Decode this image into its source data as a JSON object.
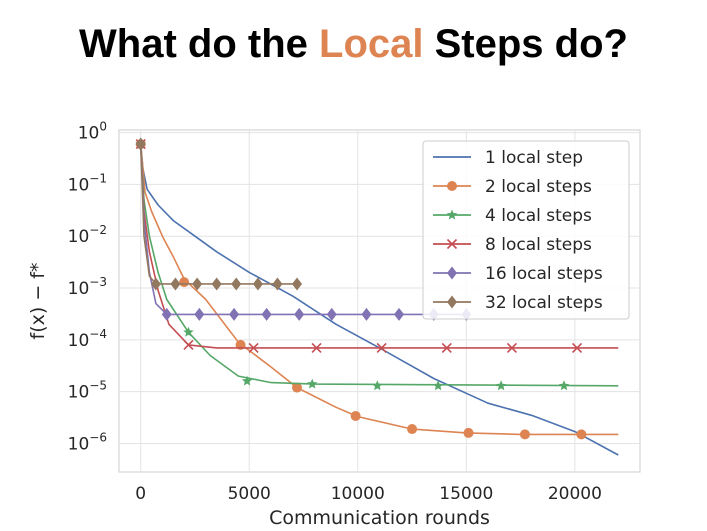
{
  "slide": {
    "title_before": "What do the ",
    "title_accent": "Local",
    "title_after": " Steps do?",
    "accent_color": "#dd8452"
  },
  "chart_data": {
    "type": "line",
    "xlabel": "Communication rounds",
    "ylabel": "f(x) − f*",
    "xlim": [
      -1000,
      23000
    ],
    "ylim_log10": [
      -6.55,
      0.05
    ],
    "yscale": "log",
    "grid": true,
    "legend_position": "top-right",
    "x_ticks": [
      {
        "value": 0,
        "label": "0"
      },
      {
        "value": 5000,
        "label": "5000"
      },
      {
        "value": 10000,
        "label": "10000"
      },
      {
        "value": 15000,
        "label": "15000"
      },
      {
        "value": 20000,
        "label": "20000"
      }
    ],
    "y_ticks": [
      {
        "exp": 0,
        "base": "10",
        "power": "0"
      },
      {
        "exp": -1,
        "base": "10",
        "power": "−1"
      },
      {
        "exp": -2,
        "base": "10",
        "power": "−2"
      },
      {
        "exp": -3,
        "base": "10",
        "power": "−3"
      },
      {
        "exp": -4,
        "base": "10",
        "power": "−4"
      },
      {
        "exp": -5,
        "base": "10",
        "power": "−5"
      },
      {
        "exp": -6,
        "base": "10",
        "power": "−6"
      }
    ],
    "series": [
      {
        "name": "1 local step",
        "color": "#4c72b0",
        "marker": "none",
        "points": [
          [
            0,
            0.6
          ],
          [
            100,
            0.2
          ],
          [
            300,
            0.08
          ],
          [
            800,
            0.04
          ],
          [
            1500,
            0.02
          ],
          [
            2500,
            0.01
          ],
          [
            3500,
            0.005
          ],
          [
            5000,
            0.002
          ],
          [
            7000,
            0.0007
          ],
          [
            9000,
            0.0002
          ],
          [
            11000,
            7e-05
          ],
          [
            13500,
            1.8e-05
          ],
          [
            16000,
            6e-06
          ],
          [
            18000,
            3.5e-06
          ],
          [
            20000,
            1.7e-06
          ],
          [
            22000,
            6e-07
          ]
        ],
        "markers": []
      },
      {
        "name": "2 local steps",
        "color": "#dd8452",
        "marker": "circle",
        "points": [
          [
            0,
            0.6
          ],
          [
            200,
            0.07
          ],
          [
            500,
            0.03
          ],
          [
            1000,
            0.01
          ],
          [
            1500,
            0.004
          ],
          [
            2000,
            0.0015
          ],
          [
            3000,
            0.0006
          ],
          [
            4500,
            9e-05
          ],
          [
            6000,
            3e-05
          ],
          [
            7200,
            1.2e-05
          ],
          [
            9000,
            5e-06
          ],
          [
            10000,
            3.3e-06
          ],
          [
            12500,
            1.9e-06
          ],
          [
            15000,
            1.6e-06
          ],
          [
            17500,
            1.5e-06
          ],
          [
            22000,
            1.5e-06
          ]
        ],
        "markers": [
          [
            0,
            0.6
          ],
          [
            2000,
            0.0013
          ],
          [
            4600,
            8e-05
          ],
          [
            7200,
            1.2e-05
          ],
          [
            9900,
            3.4e-06
          ],
          [
            12500,
            1.9e-06
          ],
          [
            15100,
            1.6e-06
          ],
          [
            17700,
            1.5e-06
          ],
          [
            20300,
            1.5e-06
          ]
        ]
      },
      {
        "name": "4 local steps",
        "color": "#55a868",
        "marker": "star",
        "points": [
          [
            0,
            0.6
          ],
          [
            150,
            0.05
          ],
          [
            400,
            0.01
          ],
          [
            800,
            0.002
          ],
          [
            1200,
            0.0006
          ],
          [
            2200,
            0.00014
          ],
          [
            3200,
            5e-05
          ],
          [
            4500,
            2e-05
          ],
          [
            6000,
            1.5e-05
          ],
          [
            8000,
            1.4e-05
          ],
          [
            22000,
            1.3e-05
          ]
        ],
        "markers": [
          [
            0,
            0.6
          ],
          [
            2200,
            0.00014
          ],
          [
            4900,
            1.6e-05
          ],
          [
            7900,
            1.4e-05
          ],
          [
            10900,
            1.3e-05
          ],
          [
            13700,
            1.3e-05
          ],
          [
            16600,
            1.3e-05
          ],
          [
            19500,
            1.3e-05
          ]
        ]
      },
      {
        "name": "8 local steps",
        "color": "#c44e52",
        "marker": "x",
        "points": [
          [
            0,
            0.6
          ],
          [
            150,
            0.03
          ],
          [
            400,
            0.005
          ],
          [
            800,
            0.0009
          ],
          [
            1300,
            0.0002
          ],
          [
            2200,
            8e-05
          ],
          [
            3500,
            7e-05
          ],
          [
            22000,
            7e-05
          ]
        ],
        "markers": [
          [
            0,
            0.6
          ],
          [
            2200,
            8e-05
          ],
          [
            5200,
            7e-05
          ],
          [
            8100,
            7e-05
          ],
          [
            11100,
            7e-05
          ],
          [
            14100,
            7e-05
          ],
          [
            17100,
            7e-05
          ],
          [
            20100,
            7e-05
          ]
        ]
      },
      {
        "name": "16 local steps",
        "color": "#8172b3",
        "marker": "diamond",
        "points": [
          [
            0,
            0.6
          ],
          [
            150,
            0.02
          ],
          [
            400,
            0.002
          ],
          [
            700,
            0.0005
          ],
          [
            1200,
            0.00031
          ],
          [
            15000,
            0.00031
          ]
        ],
        "markers": [
          [
            0,
            0.6
          ],
          [
            1200,
            0.00031
          ],
          [
            2700,
            0.00031
          ],
          [
            4300,
            0.00031
          ],
          [
            5800,
            0.00031
          ],
          [
            7300,
            0.00031
          ],
          [
            8800,
            0.00031
          ],
          [
            10400,
            0.00031
          ],
          [
            11900,
            0.00031
          ],
          [
            13500,
            0.00031
          ],
          [
            15000,
            0.00031
          ]
        ]
      },
      {
        "name": "32 local steps",
        "color": "#937860",
        "marker": "diamond",
        "points": [
          [
            0,
            0.6
          ],
          [
            150,
            0.01
          ],
          [
            400,
            0.0017
          ],
          [
            700,
            0.0012
          ],
          [
            7200,
            0.0012
          ]
        ],
        "markers": [
          [
            0,
            0.6
          ],
          [
            700,
            0.0012
          ],
          [
            1600,
            0.0012
          ],
          [
            2600,
            0.0012
          ],
          [
            3500,
            0.0012
          ],
          [
            4400,
            0.0012
          ],
          [
            5400,
            0.0012
          ],
          [
            6300,
            0.0012
          ],
          [
            7200,
            0.0012
          ]
        ]
      }
    ]
  }
}
